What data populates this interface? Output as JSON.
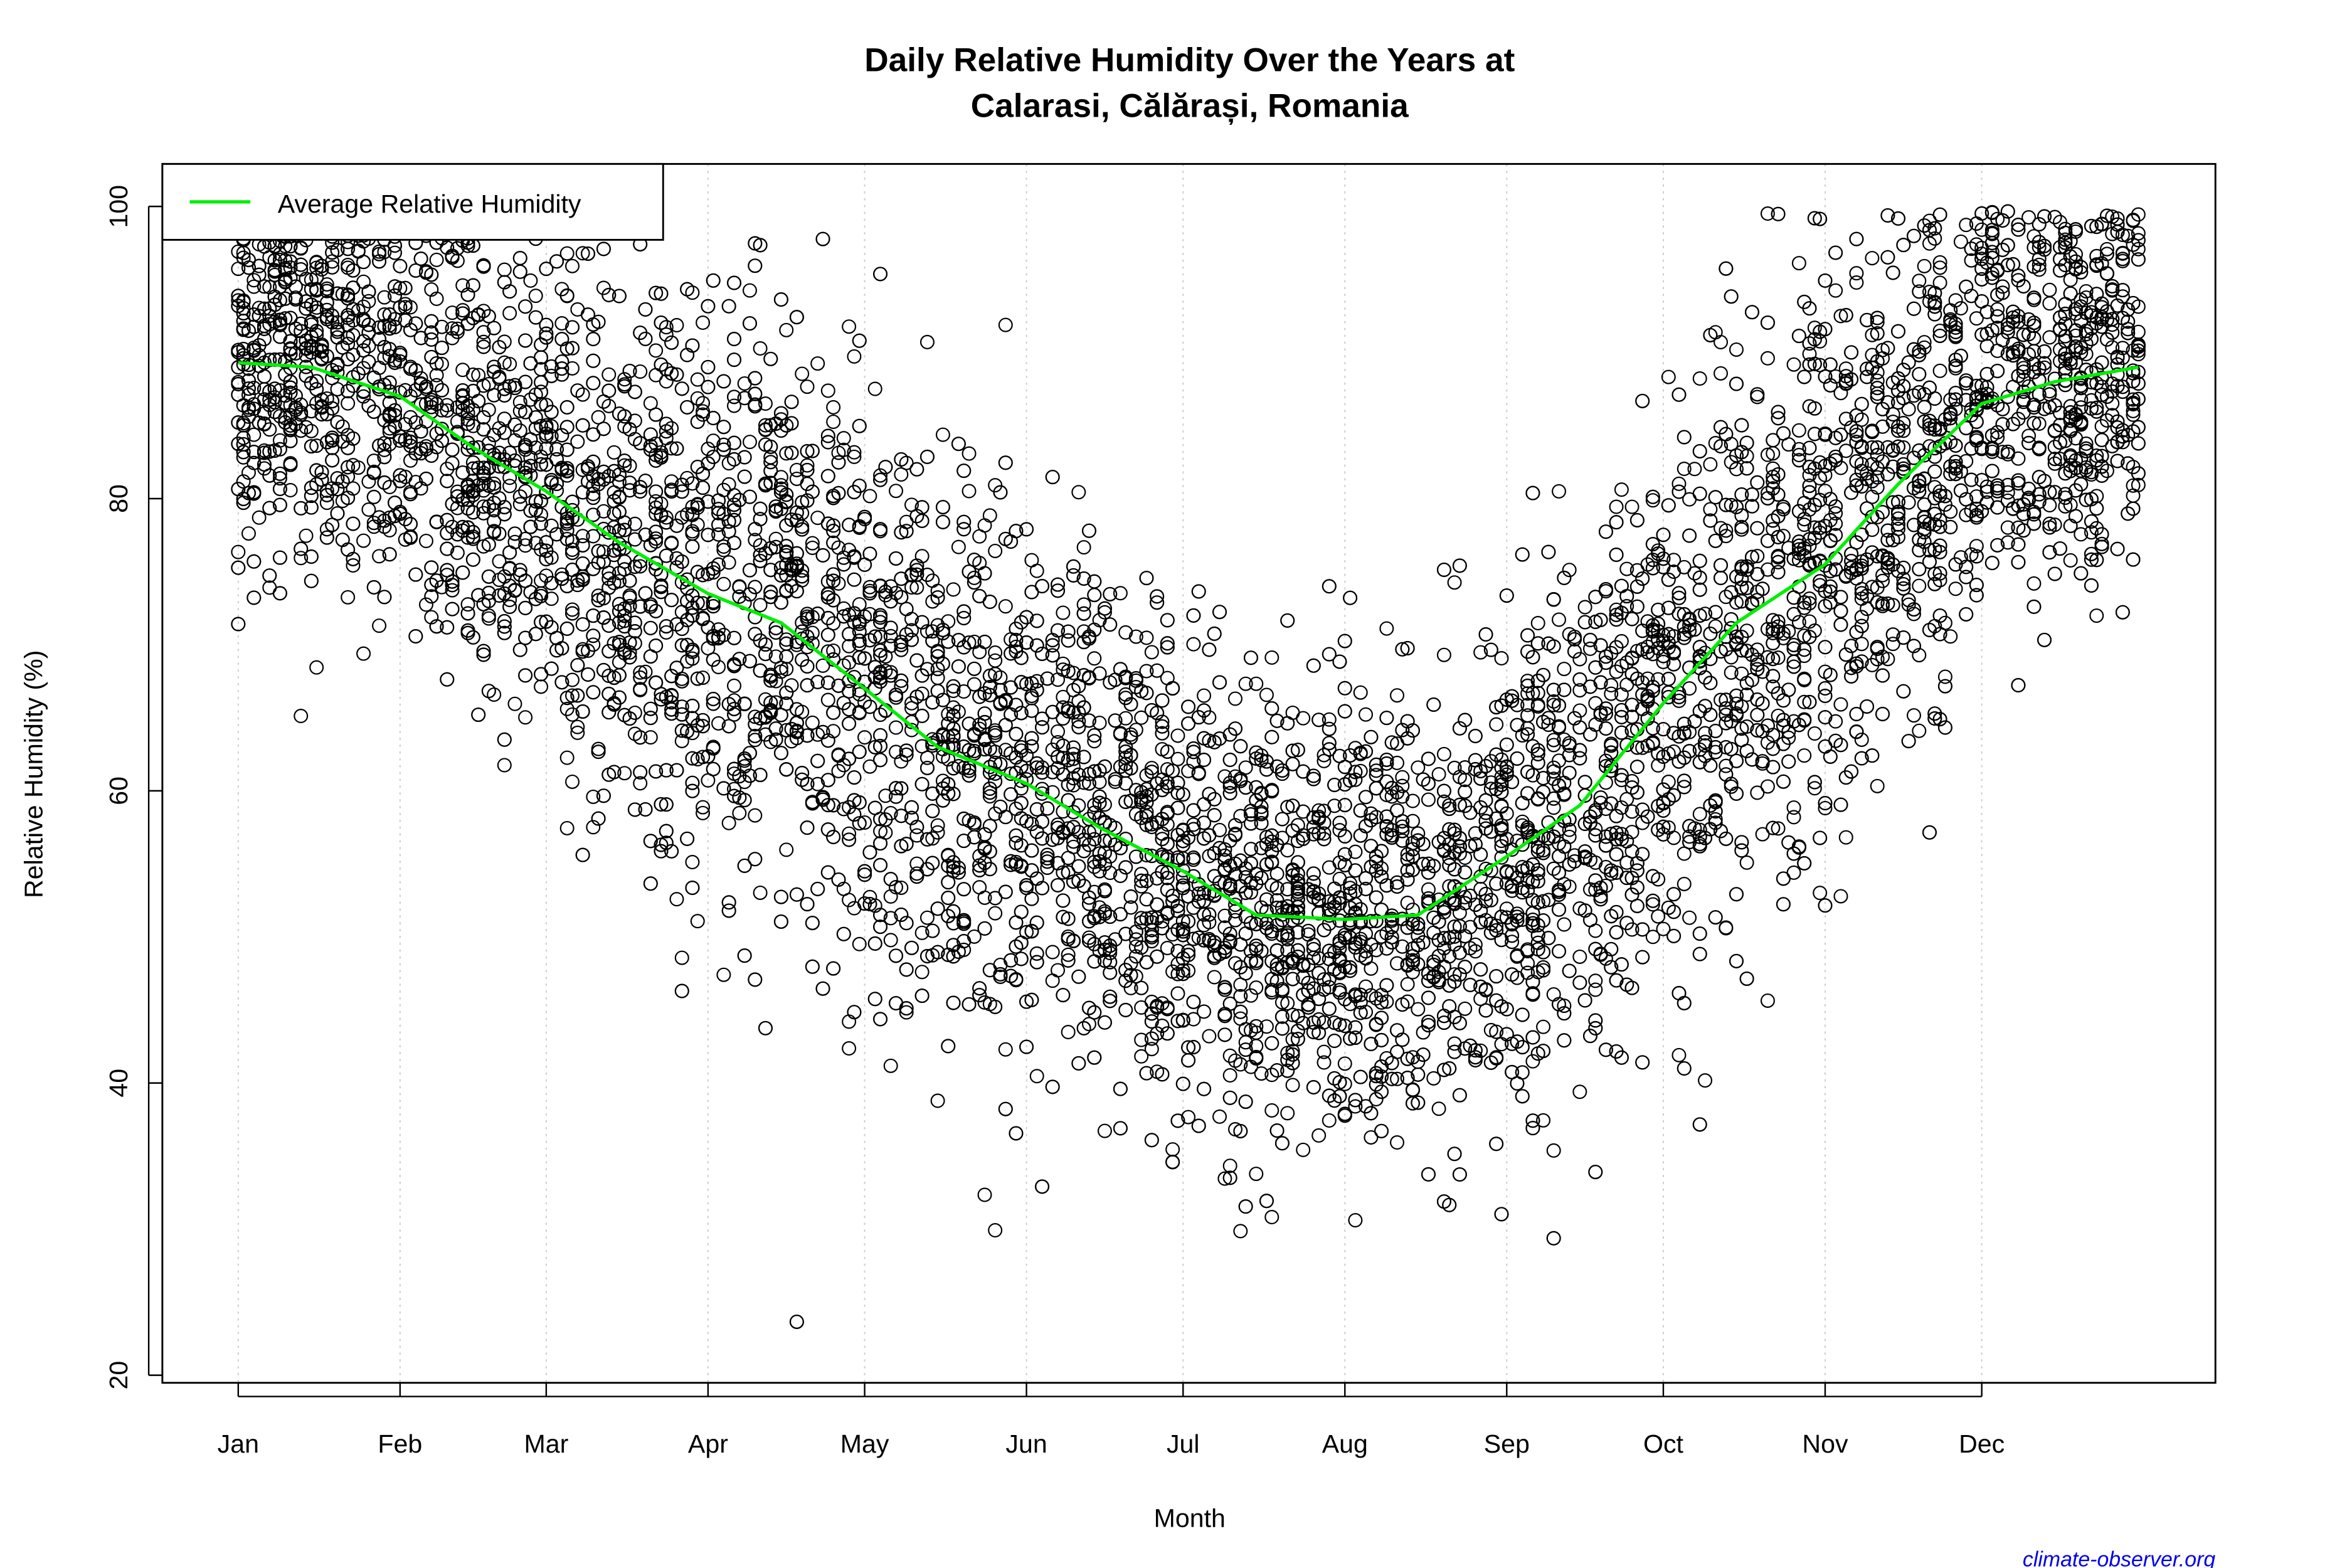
{
  "chart_data": {
    "type": "scatter",
    "title": [
      "Daily Relative Humidity Over the Years at",
      "Calarasi, Călărași, Romania"
    ],
    "xlabel": "Month",
    "ylabel": "Relative Humidity  (%)",
    "ylim": [
      20,
      100
    ],
    "yticks": [
      20,
      40,
      60,
      80,
      100
    ],
    "xtick_labels": [
      "Jan",
      "Feb",
      "Mar",
      "Apr",
      "May",
      "Jun",
      "Jul",
      "Aug",
      "Sep",
      "Oct",
      "Nov",
      "Dec"
    ],
    "xtick_days": [
      1,
      32,
      60,
      91,
      121,
      152,
      182,
      213,
      244,
      274,
      305,
      335
    ],
    "xlim_days": [
      1,
      365
    ],
    "grid": "vertical dotted at month ticks",
    "legend": {
      "position": "top-left",
      "entries": [
        {
          "label": "Average Relative Humidity",
          "color": "#00ee00"
        }
      ]
    },
    "average_line": {
      "name": "Average Relative Humidity",
      "color": "#00ee00",
      "day": [
        1,
        15,
        32,
        46,
        60,
        74,
        91,
        105,
        121,
        135,
        152,
        166,
        182,
        196,
        213,
        227,
        244,
        258,
        274,
        288,
        305,
        319,
        335,
        349,
        365
      ],
      "value": [
        89.3,
        89.0,
        87.0,
        83.5,
        80.5,
        77.0,
        73.5,
        71.5,
        67.0,
        63.0,
        60.5,
        57.5,
        54.5,
        51.5,
        51.2,
        51.5,
        55.5,
        59.0,
        66.0,
        71.5,
        75.5,
        81.0,
        86.5,
        88.0,
        89.0
      ]
    },
    "points": {
      "marker": "open circle",
      "color": "#000000",
      "description_range": [
        22,
        100
      ]
    }
  },
  "credit": "climate-observer.org"
}
